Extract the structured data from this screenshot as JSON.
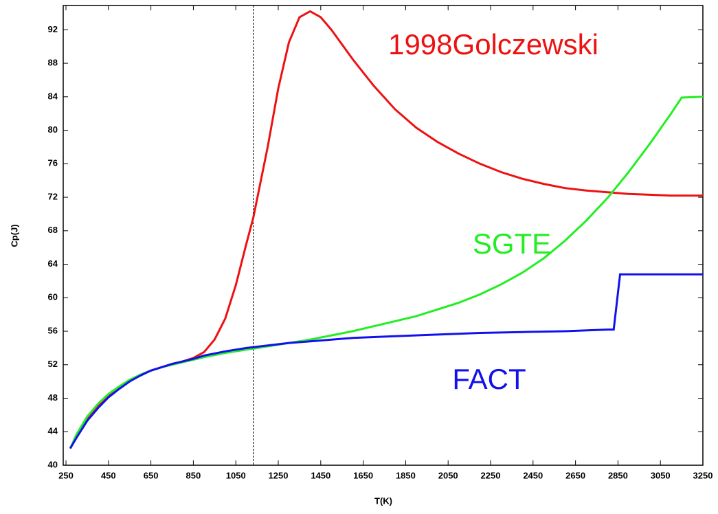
{
  "chart_data": {
    "type": "line",
    "xlabel": "T(K)",
    "ylabel": "Cp(J)",
    "xlim": [
      237,
      3250
    ],
    "ylim": [
      40,
      94.9
    ],
    "xticks": [
      250,
      450,
      650,
      850,
      1050,
      1250,
      1450,
      1650,
      1850,
      2050,
      2250,
      2450,
      2650,
      2850,
      3050,
      3250
    ],
    "yticks": [
      40,
      44,
      48,
      52,
      56,
      60,
      64,
      68,
      72,
      76,
      80,
      84,
      88,
      92
    ],
    "vline": 1132,
    "series": [
      {
        "name": "1998Golczewski",
        "color": "#ee1111",
        "x": [
          270,
          300,
          350,
          400,
          450,
          500,
          550,
          600,
          650,
          700,
          750,
          800,
          850,
          900,
          950,
          1000,
          1050,
          1100,
          1132,
          1200,
          1250,
          1300,
          1350,
          1400,
          1450,
          1500,
          1600,
          1700,
          1800,
          1900,
          2000,
          2100,
          2200,
          2300,
          2400,
          2500,
          2600,
          2700,
          2800,
          2900,
          3000,
          3100,
          3250
        ],
        "values": [
          42,
          43.5,
          45.5,
          47,
          48.3,
          49.3,
          50.1,
          50.8,
          51.3,
          51.7,
          52.1,
          52.4,
          52.8,
          53.5,
          55,
          57.5,
          61.5,
          66.5,
          69.5,
          78,
          85,
          90.5,
          93.5,
          94.2,
          93.5,
          92,
          88.5,
          85.3,
          82.5,
          80.3,
          78.6,
          77.2,
          76,
          75,
          74.2,
          73.6,
          73.1,
          72.8,
          72.6,
          72.4,
          72.3,
          72.2,
          72.2
        ]
      },
      {
        "name": "SGTE",
        "color": "#22ee22",
        "x": [
          270,
          300,
          350,
          400,
          450,
          500,
          550,
          600,
          650,
          700,
          750,
          800,
          850,
          900,
          1000,
          1100,
          1200,
          1300,
          1400,
          1500,
          1600,
          1700,
          1800,
          1900,
          2000,
          2100,
          2200,
          2300,
          2400,
          2500,
          2600,
          2700,
          2800,
          2900,
          3000,
          3100,
          3150,
          3250
        ],
        "values": [
          42,
          43.7,
          45.8,
          47.3,
          48.5,
          49.4,
          50.2,
          50.8,
          51.3,
          51.7,
          52,
          52.3,
          52.6,
          52.9,
          53.4,
          53.8,
          54.2,
          54.6,
          55,
          55.5,
          56,
          56.6,
          57.2,
          57.8,
          58.6,
          59.4,
          60.4,
          61.6,
          63,
          64.7,
          66.8,
          69.2,
          71.9,
          75,
          78.4,
          82,
          83.9,
          84
        ]
      },
      {
        "name": "FACT",
        "color": "#1111ee",
        "x": [
          270,
          300,
          350,
          400,
          450,
          500,
          550,
          600,
          650,
          700,
          750,
          800,
          850,
          900,
          1000,
          1100,
          1200,
          1300,
          1400,
          1500,
          1600,
          1800,
          2000,
          2200,
          2400,
          2600,
          2800,
          2830,
          2860,
          3250
        ],
        "values": [
          42,
          43.3,
          45.3,
          46.8,
          48.1,
          49.1,
          50,
          50.7,
          51.3,
          51.7,
          52.1,
          52.4,
          52.7,
          53.1,
          53.6,
          54,
          54.3,
          54.6,
          54.8,
          55,
          55.2,
          55.4,
          55.6,
          55.8,
          55.9,
          56,
          56.2,
          56.2,
          62.8,
          62.8
        ]
      }
    ]
  }
}
